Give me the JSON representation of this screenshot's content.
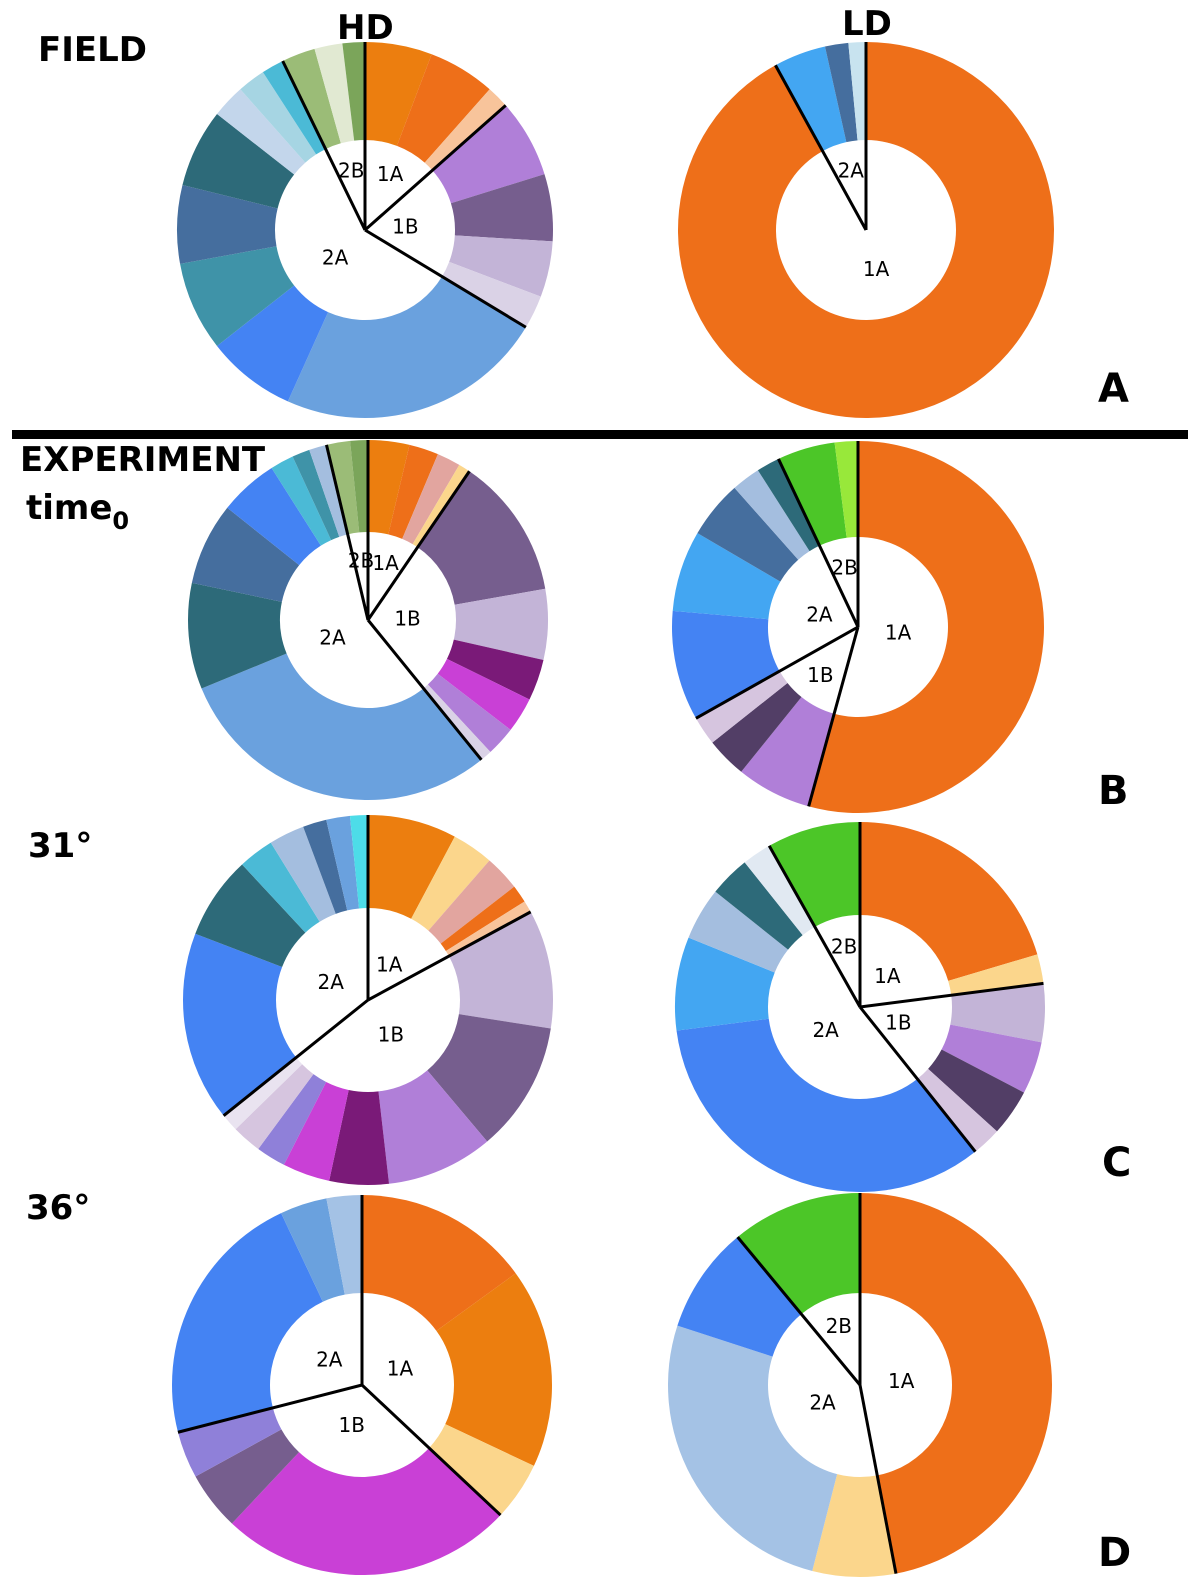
{
  "headers": {
    "col_hd": "HD",
    "col_ld": "LD"
  },
  "rows": {
    "field": "FIELD",
    "experiment": "EXPERIMENT",
    "time_base": "time",
    "time_sub": "0",
    "r31": "31°",
    "r36": "36°"
  },
  "panels": {
    "a": "A",
    "b": "B",
    "c": "C",
    "d": "D"
  },
  "chart_data": [
    {
      "type": "pie",
      "variant": "donut",
      "panel": "A",
      "row": "FIELD",
      "column": "HD",
      "groups": [
        {
          "label": "1A",
          "slices": [
            {
              "value": 6,
              "color": "#EC7E0F"
            },
            {
              "value": 6,
              "color": "#EE6F19"
            },
            {
              "value": 2,
              "color": "#F8C49B"
            }
          ]
        },
        {
          "label": "1B",
          "slices": [
            {
              "value": 7,
              "color": "#B07FD8"
            },
            {
              "value": 6,
              "color": "#765E8E"
            },
            {
              "value": 5,
              "color": "#C3B4D7"
            },
            {
              "value": 3,
              "color": "#DAD2E6"
            }
          ]
        },
        {
          "label": "2A",
          "slices": [
            {
              "value": 24,
              "color": "#6AA1DE"
            },
            {
              "value": 8,
              "color": "#4483F3"
            },
            {
              "value": 8,
              "color": "#3F93A8"
            },
            {
              "value": 7,
              "color": "#456E9E"
            },
            {
              "value": 7,
              "color": "#2D6A79"
            },
            {
              "value": 3,
              "color": "#C3D6EB"
            },
            {
              "value": 2.5,
              "color": "#A6D5E3"
            },
            {
              "value": 2,
              "color": "#4BBAD6"
            }
          ]
        },
        {
          "label": "2B",
          "slices": [
            {
              "value": 3,
              "color": "#9BBC77"
            },
            {
              "value": 2.5,
              "color": "#E1E9D2"
            },
            {
              "value": 2,
              "color": "#7BA55A"
            }
          ]
        }
      ]
    },
    {
      "type": "pie",
      "variant": "donut",
      "panel": "A",
      "row": "FIELD",
      "column": "LD",
      "groups": [
        {
          "label": "1A",
          "slices": [
            {
              "value": 92,
              "color": "#EE6F19"
            }
          ]
        },
        {
          "label": "2A",
          "slices": [
            {
              "value": 4.5,
              "color": "#43A6F2"
            },
            {
              "value": 2,
              "color": "#456E9E"
            },
            {
              "value": 1.5,
              "color": "#C8E3EF"
            }
          ]
        }
      ]
    },
    {
      "type": "pie",
      "variant": "donut",
      "panel": "B",
      "row": "EXPERIMENT time0",
      "column": "HD",
      "groups": [
        {
          "label": "1A",
          "slices": [
            {
              "value": 3.5,
              "color": "#EC7E0F"
            },
            {
              "value": 2.5,
              "color": "#EE6F19"
            },
            {
              "value": 2,
              "color": "#E2A59F"
            },
            {
              "value": 1,
              "color": "#FBD68C"
            }
          ]
        },
        {
          "label": "1B",
          "slices": [
            {
              "value": 12,
              "color": "#765E8E"
            },
            {
              "value": 6,
              "color": "#C3B4D7"
            },
            {
              "value": 3.5,
              "color": "#7A1A78"
            },
            {
              "value": 3,
              "color": "#C940D6"
            },
            {
              "value": 2.5,
              "color": "#B07FD8"
            },
            {
              "value": 1,
              "color": "#DAD2E6"
            }
          ]
        },
        {
          "label": "2A",
          "slices": [
            {
              "value": 28,
              "color": "#6AA1DE"
            },
            {
              "value": 9,
              "color": "#2D6A79"
            },
            {
              "value": 7,
              "color": "#456E9E"
            },
            {
              "value": 5,
              "color": "#4483F3"
            },
            {
              "value": 2,
              "color": "#4BBAD6"
            },
            {
              "value": 1.5,
              "color": "#3F93A8"
            },
            {
              "value": 1.5,
              "color": "#A4BEDF"
            }
          ]
        },
        {
          "label": "2B",
          "slices": [
            {
              "value": 2,
              "color": "#9BBC77"
            },
            {
              "value": 1.5,
              "color": "#7BA55A"
            }
          ]
        }
      ]
    },
    {
      "type": "pie",
      "variant": "donut",
      "panel": "B",
      "row": "EXPERIMENT time0",
      "column": "LD",
      "groups": [
        {
          "label": "1A",
          "slices": [
            {
              "value": 54,
              "color": "#EE6F19"
            }
          ]
        },
        {
          "label": "1B",
          "slices": [
            {
              "value": 6.5,
              "color": "#B07FD8"
            },
            {
              "value": 3.5,
              "color": "#523E66"
            },
            {
              "value": 2.5,
              "color": "#D6C5DF"
            }
          ]
        },
        {
          "label": "2A",
          "slices": [
            {
              "value": 9.5,
              "color": "#4483F3"
            },
            {
              "value": 7,
              "color": "#43A6F2"
            },
            {
              "value": 5,
              "color": "#456E9E"
            },
            {
              "value": 2.5,
              "color": "#A4BEDF"
            },
            {
              "value": 2,
              "color": "#2D6A79"
            }
          ]
        },
        {
          "label": "2B",
          "slices": [
            {
              "value": 5,
              "color": "#4CC628"
            },
            {
              "value": 2,
              "color": "#98E83A"
            }
          ]
        }
      ]
    },
    {
      "type": "pie",
      "variant": "donut",
      "panel": "C",
      "row": "31°",
      "column": "HD",
      "groups": [
        {
          "label": "1A",
          "slices": [
            {
              "value": 7.5,
              "color": "#EC7E0F"
            },
            {
              "value": 3.5,
              "color": "#FBD68C"
            },
            {
              "value": 3,
              "color": "#E2A59F"
            },
            {
              "value": 1.5,
              "color": "#EE6F19"
            },
            {
              "value": 1,
              "color": "#F8C49B"
            }
          ]
        },
        {
          "label": "1B",
          "slices": [
            {
              "value": 10,
              "color": "#C3B4D7"
            },
            {
              "value": 11,
              "color": "#765E8E"
            },
            {
              "value": 9,
              "color": "#B07FD8"
            },
            {
              "value": 5,
              "color": "#7A1A78"
            },
            {
              "value": 4,
              "color": "#C940D6"
            },
            {
              "value": 2.5,
              "color": "#8F80D9"
            },
            {
              "value": 2.5,
              "color": "#D6C5DF"
            },
            {
              "value": 1.5,
              "color": "#E9E3F0"
            }
          ]
        },
        {
          "label": "2A",
          "slices": [
            {
              "value": 16,
              "color": "#4483F3"
            },
            {
              "value": 7,
              "color": "#2D6A79"
            },
            {
              "value": 3,
              "color": "#4BBAD6"
            },
            {
              "value": 3,
              "color": "#A4BEDF"
            },
            {
              "value": 2,
              "color": "#456E9E"
            },
            {
              "value": 2,
              "color": "#6AA1DE"
            },
            {
              "value": 1.5,
              "color": "#4DDCE8"
            }
          ]
        }
      ]
    },
    {
      "type": "pie",
      "variant": "donut",
      "panel": "C",
      "row": "31°",
      "column": "LD",
      "groups": [
        {
          "label": "1A",
          "slices": [
            {
              "value": 20,
              "color": "#EE6F19"
            },
            {
              "value": 2.5,
              "color": "#FBD68C"
            }
          ]
        },
        {
          "label": "1B",
          "slices": [
            {
              "value": 5,
              "color": "#C3B4D7"
            },
            {
              "value": 4.5,
              "color": "#B07FD8"
            },
            {
              "value": 4,
              "color": "#523E66"
            },
            {
              "value": 2.5,
              "color": "#D6C5DF"
            }
          ]
        },
        {
          "label": "2A",
          "slices": [
            {
              "value": 33,
              "color": "#4483F3"
            },
            {
              "value": 8,
              "color": "#43A6F2"
            },
            {
              "value": 4.5,
              "color": "#A4BEDF"
            },
            {
              "value": 3.5,
              "color": "#2D6A79"
            },
            {
              "value": 2.5,
              "color": "#E1E9F2"
            }
          ]
        },
        {
          "label": "2B",
          "slices": [
            {
              "value": 8,
              "color": "#4CC628"
            }
          ]
        }
      ]
    },
    {
      "type": "pie",
      "variant": "donut",
      "panel": "D",
      "row": "36°",
      "column": "HD",
      "groups": [
        {
          "label": "1A",
          "slices": [
            {
              "value": 15,
              "color": "#EE6F19"
            },
            {
              "value": 17,
              "color": "#EC7E0F"
            },
            {
              "value": 5,
              "color": "#FBD68C"
            }
          ]
        },
        {
          "label": "1B",
          "slices": [
            {
              "value": 25,
              "color": "#C940D6"
            },
            {
              "value": 5,
              "color": "#765E8E"
            },
            {
              "value": 4,
              "color": "#8F80D9"
            }
          ]
        },
        {
          "label": "2A",
          "slices": [
            {
              "value": 22,
              "color": "#4483F3"
            },
            {
              "value": 4,
              "color": "#6AA1DE"
            },
            {
              "value": 3,
              "color": "#A4C2E5"
            }
          ]
        }
      ]
    },
    {
      "type": "pie",
      "variant": "donut",
      "panel": "D",
      "row": "36°",
      "column": "LD",
      "groups": [
        {
          "label": "1A",
          "slices": [
            {
              "value": 47,
              "color": "#EE6F19"
            }
          ]
        },
        {
          "label": "2A",
          "slices": [
            {
              "value": 7,
              "color": "#FBD68C"
            },
            {
              "value": 26,
              "color": "#A4C2E5"
            },
            {
              "value": 9,
              "color": "#4483F3"
            }
          ]
        },
        {
          "label": "2B",
          "slices": [
            {
              "value": 11,
              "color": "#4CC628"
            }
          ]
        }
      ]
    }
  ]
}
